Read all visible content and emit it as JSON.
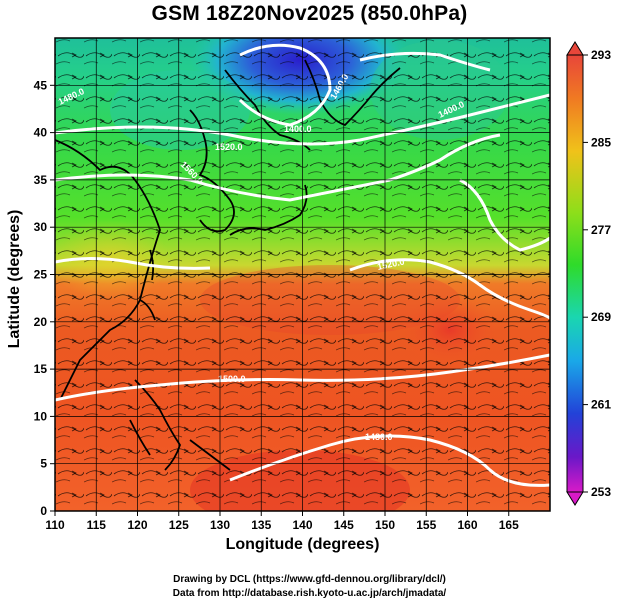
{
  "title": "GSM 18Z20Nov2025 (850.0hPa)",
  "xlabel": "Longitude (degrees)",
  "ylabel": "Latitude  (degrees)",
  "credits": [
    "Drawing by DCL (https://www.gfd-dennou.org/library/dcl/)",
    "Data from http://database.rish.kyoto-u.ac.jp/arch/jmadata/"
  ],
  "map": {
    "lon_range": [
      110,
      170
    ],
    "lat_range": [
      0,
      50
    ],
    "lon_ticks": [
      "110",
      "115",
      "120",
      "125",
      "130",
      "135",
      "140",
      "145",
      "150",
      "155",
      "160",
      "165"
    ],
    "lat_ticks": [
      "0",
      "5",
      "10",
      "15",
      "20",
      "25",
      "30",
      "35",
      "40",
      "45"
    ]
  },
  "colorbar": {
    "min": 253,
    "max": 293,
    "ticks": [
      "293",
      "285",
      "277",
      "269",
      "261",
      "253"
    ]
  },
  "contour_labels": [
    "1520.0",
    "1400.0",
    "1480.0",
    "1560.0",
    "1460.0",
    "1520.0",
    "1480.0",
    "1500.0",
    "1400.0"
  ],
  "colors": {
    "warm": "#e8462a",
    "green": "#2fdb2a",
    "cold": "#2222cc",
    "contour": "#ffffff"
  }
}
